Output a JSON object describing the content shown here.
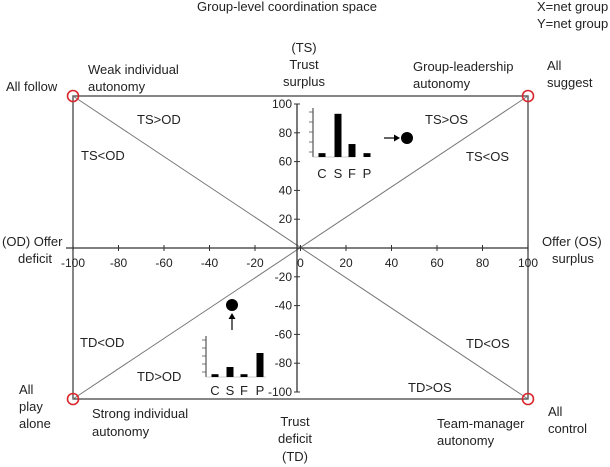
{
  "title": "Group-level coordination space",
  "legend": {
    "x": "X=net group offer",
    "y": "Y=net group trust"
  },
  "axes": {
    "x_min": -100,
    "x_max": 100,
    "y_min": -100,
    "y_max": 100,
    "x_ticks": [
      "-100",
      "-80",
      "-60",
      "-40",
      "-20",
      "0",
      "20",
      "40",
      "60",
      "80",
      "100"
    ],
    "y_ticks": [
      "100",
      "80",
      "60",
      "40",
      "20",
      "0",
      "-20",
      "-40",
      "-60",
      "-80",
      "-100"
    ]
  },
  "axis_labels": {
    "top": [
      "(TS)",
      "Trust",
      "surplus"
    ],
    "bottom": [
      "Trust",
      "deficit",
      "(TD)"
    ],
    "left": [
      "(OD) Offer",
      "deficit"
    ],
    "right": [
      "Offer (OS)",
      "surplus"
    ]
  },
  "corners": {
    "top_left": [
      "All follow"
    ],
    "top_right": [
      "All",
      "suggest"
    ],
    "bottom_left": [
      "All",
      "play",
      "alone"
    ],
    "bottom_right": [
      "All",
      "control"
    ]
  },
  "edge_labels": {
    "weak": [
      "Weak individual",
      "autonomy"
    ],
    "group_leadership": [
      "Group-leadership",
      "autonomy"
    ],
    "strong": [
      "Strong individual",
      "autonomy"
    ],
    "team_manager": [
      "Team-manager",
      "autonomy"
    ]
  },
  "regions": {
    "ts_gt_od": "TS>OD",
    "ts_lt_od": "TS<OD",
    "ts_gt_os": "TS>OS",
    "ts_lt_os": "TS<OS",
    "td_lt_od": "TD<OD",
    "td_gt_od": "TD>OD",
    "td_lt_os": "TD<OS",
    "td_gt_os": "TD>OS"
  },
  "insets": [
    {
      "position": "upper",
      "categories": [
        "C",
        "S",
        "F",
        "P"
      ],
      "values": [
        0.08,
        0.9,
        0.27,
        0.08
      ]
    },
    {
      "position": "lower",
      "categories": [
        "C",
        "S",
        "F",
        "P"
      ],
      "values": [
        0.07,
        0.25,
        0.07,
        0.6
      ]
    }
  ],
  "colors": {
    "corner_marker": "#d9262c",
    "line": "#444444"
  }
}
